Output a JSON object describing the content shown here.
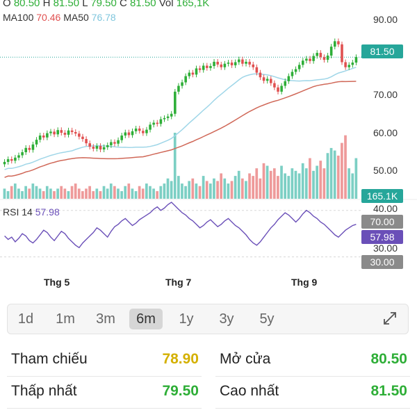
{
  "header": {
    "o_label": "O",
    "o_value": "80.50",
    "h_label": "H",
    "h_value": "81.50",
    "l_label": "L",
    "l_value": "79.50",
    "c_label": "C",
    "c_value": "81.50",
    "vol_label": "Vol",
    "vol_value": "165,1K",
    "ma100_label": "MA100",
    "ma100_value": "70.46",
    "ma50_label": "MA50",
    "ma50_value": "76.78",
    "rsi_label": "RSI 14",
    "rsi_value": "57.98"
  },
  "price_axis": [
    "90.00",
    "70.00",
    "60.00",
    "50.00"
  ],
  "rsi_axis": [
    "40.00",
    "30.00"
  ],
  "tags": {
    "price": "81.50",
    "volume": "165.1K",
    "rsi_high": "70.00",
    "rsi_value": "57.98",
    "rsi_low": "30.00"
  },
  "x_labels": [
    "Thg 5",
    "Thg 7",
    "Thg 9"
  ],
  "ranges": [
    "1d",
    "1m",
    "3m",
    "6m",
    "1y",
    "3y",
    "5y"
  ],
  "active_range": "6m",
  "stats": {
    "ref_label": "Tham chiếu",
    "ref_value": "78.90",
    "open_label": "Mở cửa",
    "open_value": "80.50",
    "low_label": "Thấp nhất",
    "low_value": "79.50",
    "high_label": "Cao nhất",
    "high_value": "81.50"
  },
  "colors": {
    "up": "#2eae37",
    "down": "#e05050",
    "ma100": "#d06858",
    "ma50": "#9fd6e8",
    "rsi": "#6a4fb8",
    "ref": "#d4b000",
    "tag_price": "#26a69a",
    "tag_gray": "#808080"
  },
  "chart_data": {
    "type": "candlestick",
    "price_ylim": [
      45,
      93
    ],
    "rsi_ylim": [
      25,
      80
    ],
    "close": [
      54.5,
      55.2,
      54.8,
      55.6,
      56.2,
      57.0,
      58.1,
      57.6,
      59.0,
      60.2,
      61.3,
      60.8,
      61.9,
      62.3,
      61.6,
      62.7,
      62.0,
      61.5,
      62.6,
      62.2,
      61.8,
      61.0,
      60.4,
      59.3,
      58.4,
      57.9,
      58.6,
      57.7,
      58.3,
      58.8,
      59.6,
      59.2,
      60.1,
      61.3,
      62.1,
      61.4,
      62.4,
      63.1,
      62.5,
      61.9,
      62.8,
      64.1,
      64.6,
      64.3,
      65.5,
      65.8,
      66.2,
      66.9,
      72.6,
      74.1,
      75.0,
      76.6,
      77.5,
      77.0,
      78.6,
      78.2,
      79.3,
      78.7,
      79.2,
      80.3,
      79.6,
      78.9,
      79.8,
      80.1,
      79.4,
      80.2,
      80.9,
      79.8,
      80.3,
      79.6,
      78.9,
      77.5,
      76.3,
      75.4,
      75.9,
      74.8,
      73.7,
      72.6,
      74.1,
      75.3,
      76.6,
      77.7,
      78.4,
      79.5,
      80.6,
      81.1,
      80.5,
      81.8,
      82.6,
      81.5,
      80.8,
      81.9,
      84.2,
      85.6,
      84.8,
      80.2,
      78.9,
      79.5,
      80.1,
      81.5
    ],
    "volume": [
      4,
      3,
      5,
      6,
      4,
      3,
      5,
      4,
      6,
      5,
      4,
      3,
      5,
      4,
      3,
      4,
      5,
      4,
      3,
      5,
      6,
      4,
      3,
      4,
      5,
      3,
      4,
      3,
      5,
      4,
      6,
      5,
      4,
      3,
      5,
      6,
      4,
      3,
      5,
      4,
      6,
      5,
      4,
      3,
      5,
      6,
      8,
      7,
      26,
      9,
      6,
      5,
      7,
      8,
      6,
      5,
      9,
      7,
      6,
      8,
      7,
      10,
      8,
      6,
      7,
      9,
      11,
      8,
      7,
      10,
      9,
      12,
      8,
      14,
      13,
      11,
      12,
      9,
      13,
      10,
      9,
      12,
      11,
      10,
      14,
      12,
      16,
      11,
      13,
      15,
      12,
      18,
      20,
      19,
      17,
      22,
      25,
      12,
      10,
      16
    ],
    "rsi": [
      48,
      45,
      47,
      43,
      46,
      50,
      48,
      44,
      42,
      45,
      49,
      53,
      51,
      47,
      44,
      48,
      52,
      50,
      46,
      43,
      40,
      38,
      42,
      45,
      48,
      51,
      55,
      53,
      50,
      47,
      52,
      56,
      58,
      61,
      63,
      60,
      57,
      59,
      62,
      64,
      66,
      68,
      71,
      73,
      70,
      72,
      75,
      77,
      74,
      71,
      68,
      66,
      63,
      61,
      58,
      55,
      57,
      60,
      62,
      59,
      56,
      58,
      61,
      63,
      60,
      57,
      55,
      52,
      49,
      45,
      42,
      40,
      43,
      47,
      51,
      55,
      58,
      62,
      65,
      68,
      66,
      63,
      60,
      63,
      67,
      70,
      68,
      65,
      63,
      60,
      58,
      55,
      52,
      49,
      47,
      50,
      53,
      55,
      57,
      58
    ],
    "rsi_levels": [
      70,
      30
    ]
  }
}
